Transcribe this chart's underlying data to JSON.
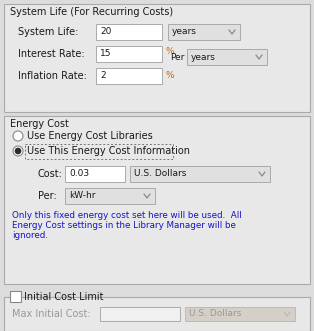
{
  "bg_color": "#dcdcdc",
  "panel_bg": "#e8e8e8",
  "white": "#ffffff",
  "text_color": "#1a1a1a",
  "blue_text": "#1414cc",
  "gray_text": "#999999",
  "orange_text": "#cc6600",
  "section1_title": "System Life (For Recurring Costs)",
  "system_life_label": "System Life:",
  "system_life_value": "20",
  "system_life_unit": "years",
  "interest_label": "Interest Rate:",
  "interest_value": "15",
  "interest_pct": "%",
  "per_label": "Per",
  "per_unit": "years",
  "inflation_label": "Inflation Rate:",
  "inflation_value": "2",
  "inflation_pct": "%",
  "section2_title": "Energy Cost",
  "radio1_label": "Use Energy Cost Libraries",
  "radio2_label": "Use This Energy Cost Information",
  "cost_label": "Cost:",
  "cost_value": "0.03",
  "cost_unit": "U.S. Dollars",
  "per2_label": "Per:",
  "per2_unit": "kW-hr",
  "note_line1": "Only this fixed energy cost set here will be used.  All",
  "note_line2": "Energy Cost settings in the Library Manager will be",
  "note_line3": "ignored.",
  "section3_title": "Initial Cost Limit",
  "max_cost_label": "Max Initial Cost:",
  "max_cost_unit": "U.S. Dollars"
}
